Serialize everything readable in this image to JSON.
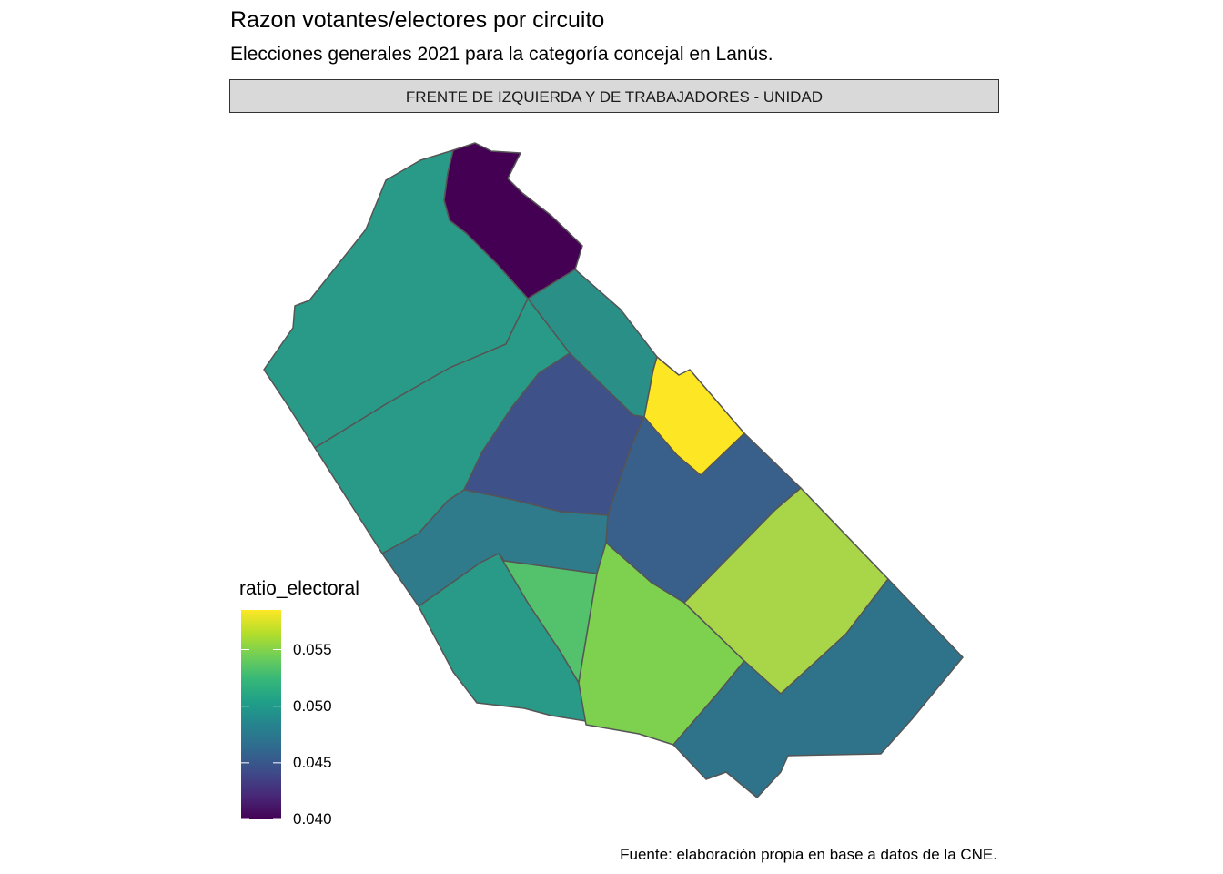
{
  "header": {
    "title": "Razon votantes/electores por circuito",
    "subtitle": "Elecciones generales 2021 para la categoría concejal en Lanús.",
    "facet_label": "FRENTE DE IZQUIERDA Y DE TRABAJADORES - UNIDAD"
  },
  "caption": "Fuente: elaboración propia en base a datos de la CNE.",
  "legend": {
    "title": "ratio_electoral",
    "min": 0.04,
    "max": 0.0585,
    "ticks": [
      {
        "value": 0.055,
        "label": "0.055"
      },
      {
        "value": 0.05,
        "label": "0.050"
      },
      {
        "value": 0.045,
        "label": "0.045"
      },
      {
        "value": 0.04,
        "label": "0.040"
      }
    ],
    "palette": [
      "#440154",
      "#482878",
      "#3e4a89",
      "#31688e",
      "#26828e",
      "#1f9e89",
      "#35b779",
      "#6ece58",
      "#b5de2b",
      "#fde725"
    ]
  },
  "chart_data": {
    "type": "choropleth",
    "variable": "ratio_electoral",
    "regions": [
      {
        "id": "circuito-north",
        "color": "#440154",
        "value": 0.04
      },
      {
        "id": "circuito-northwest",
        "color": "#2a9a88",
        "value": 0.0505
      },
      {
        "id": "circuito-north-center",
        "color": "#2a9087",
        "value": 0.05
      },
      {
        "id": "circuito-west-center",
        "color": "#2a9a88",
        "value": 0.0505
      },
      {
        "id": "circuito-center",
        "color": "#3e5289",
        "value": 0.0455
      },
      {
        "id": "circuito-yellow",
        "color": "#fde725",
        "value": 0.0585
      },
      {
        "id": "circuito-east-center",
        "color": "#39608b",
        "value": 0.0465
      },
      {
        "id": "circuito-southwest-upper",
        "color": "#2f7b8b",
        "value": 0.0485
      },
      {
        "id": "circuito-southwest",
        "color": "#299a88",
        "value": 0.0505
      },
      {
        "id": "circuito-south-green",
        "color": "#54c16c",
        "value": 0.053
      },
      {
        "id": "circuito-south-center",
        "color": "#7ed14f",
        "value": 0.055
      },
      {
        "id": "circuito-east",
        "color": "#a8d648",
        "value": 0.0565
      },
      {
        "id": "circuito-southeast",
        "color": "#2f738b",
        "value": 0.048
      }
    ]
  }
}
